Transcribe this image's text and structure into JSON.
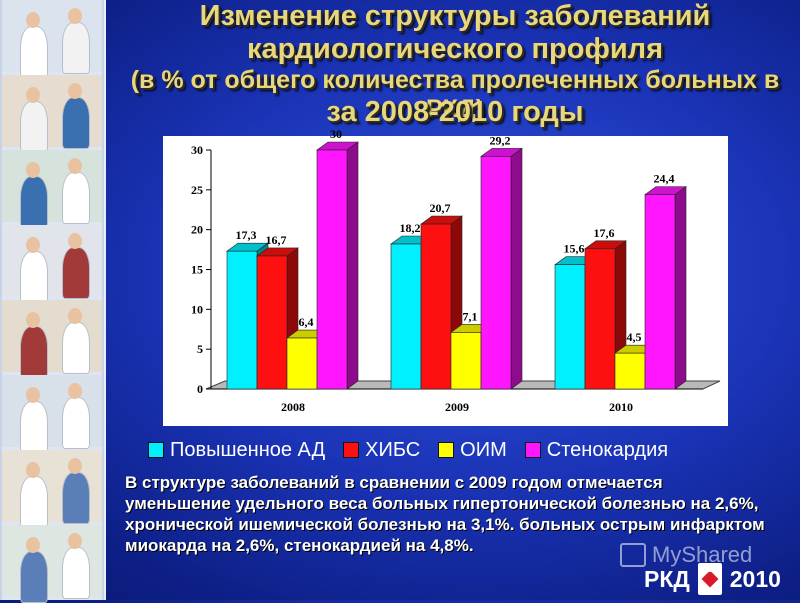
{
  "title": {
    "line1": "Изменение структуры заболеваний",
    "line2": "кардиологического профиля",
    "line3": "(в % от общего количества пролеченных больных в РКД)",
    "line4": "за 2008-2010 годы"
  },
  "colors": {
    "cyan": "#00f0ff",
    "red": "#ff1010",
    "yellow": "#ffff00",
    "magenta": "#ff16ff",
    "title_text": "#e9d77a"
  },
  "chart_data": {
    "type": "bar",
    "categories": [
      "2008",
      "2009",
      "2010"
    ],
    "series": [
      {
        "name": "Повышенное АД",
        "values": [
          17.3,
          18.2,
          15.6
        ],
        "labels": [
          "17,3",
          "18,2",
          "15,6"
        ],
        "color": "#00f0ff"
      },
      {
        "name": "ХИБС",
        "values": [
          16.7,
          20.7,
          17.6
        ],
        "labels": [
          "16,7",
          "20,7",
          "17,6"
        ],
        "color": "#ff1010"
      },
      {
        "name": "ОИМ",
        "values": [
          6.4,
          7.1,
          4.5
        ],
        "labels": [
          "6,4",
          "7,1",
          "4,5"
        ],
        "color": "#ffff00"
      },
      {
        "name": "Стенокардия",
        "values": [
          30,
          29.2,
          24.4
        ],
        "labels": [
          "30",
          "29,2",
          "24,4"
        ],
        "color": "#ff16ff"
      }
    ],
    "ylim": [
      0,
      30
    ],
    "yticks": [
      "0",
      "5",
      "10",
      "15",
      "20",
      "25",
      "30"
    ],
    "legend_position": "bottom",
    "style": "3d-bar"
  },
  "summary": "В структуре заболеваний в сравнении с 2009 годом отмечается уменьшение  удельного веса больных гипертонической болезнью на 2,6%, хронической ишемической болезнью на 3,1%. больных острым инфарктом миокарда на 2,6%,  стенокардией на 4,8%.",
  "watermark": "MyShared",
  "footer": {
    "left": "РКД",
    "right": "2010"
  }
}
